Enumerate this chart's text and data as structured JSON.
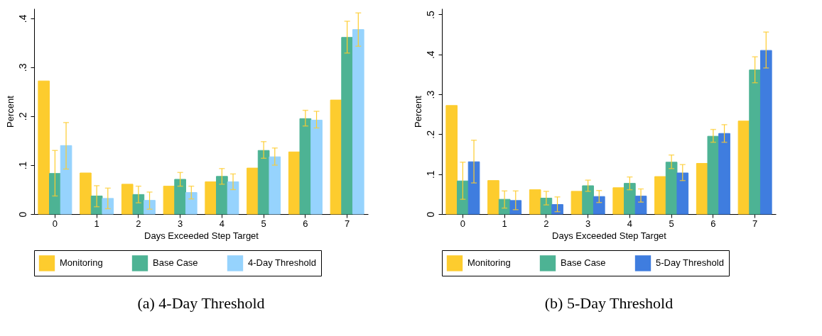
{
  "chart_data": [
    {
      "type": "bar",
      "title": "(a) 4-Day Threshold",
      "xlabel": "Days Exceeded Step Target",
      "ylabel": "Percent",
      "categories": [
        "0",
        "1",
        "2",
        "3",
        "4",
        "5",
        "6",
        "7"
      ],
      "ylim": [
        0,
        0.42
      ],
      "yticks": [
        0,
        {
          "value": 0.1,
          "label": ".1"
        },
        {
          "value": 0.2,
          "label": ".2"
        },
        {
          "value": 0.3,
          "label": ".3"
        },
        {
          "value": 0.4,
          "label": ".4"
        }
      ],
      "grid": false,
      "legend": "bottom",
      "series": [
        {
          "name": "Monitoring",
          "color": "#fdcc2e",
          "values": [
            0.272,
            0.084,
            0.061,
            0.057,
            0.066,
            0.094,
            0.127,
            0.233
          ]
        },
        {
          "name": "Base Case",
          "color": "#4db394",
          "values": [
            0.083,
            0.037,
            0.04,
            0.071,
            0.077,
            0.13,
            0.195,
            0.361
          ],
          "errors": [
            [
              0.037,
              0.13
            ],
            [
              0.015,
              0.058
            ],
            [
              0.023,
              0.057
            ],
            [
              0.057,
              0.085
            ],
            [
              0.061,
              0.093
            ],
            [
              0.114,
              0.148
            ],
            [
              0.18,
              0.212
            ],
            [
              0.329,
              0.394
            ]
          ]
        },
        {
          "name": "4-Day Threshold",
          "color": "#96d3fd",
          "values": [
            0.14,
            0.032,
            0.028,
            0.044,
            0.066,
            0.117,
            0.192,
            0.377
          ],
          "errors": [
            [
              0.092,
              0.187
            ],
            [
              0.011,
              0.053
            ],
            [
              0.01,
              0.045
            ],
            [
              0.031,
              0.057
            ],
            [
              0.05,
              0.082
            ],
            [
              0.1,
              0.135
            ],
            [
              0.176,
              0.21
            ],
            [
              0.343,
              0.411
            ]
          ]
        }
      ]
    },
    {
      "type": "bar",
      "title": "(b) 5-Day Threshold",
      "xlabel": "Days Exceeded Step Target",
      "ylabel": "Percent",
      "categories": [
        "0",
        "1",
        "2",
        "3",
        "4",
        "5",
        "6",
        "7"
      ],
      "ylim": [
        0,
        0.515
      ],
      "yticks": [
        0,
        {
          "value": 0.1,
          "label": ".1"
        },
        {
          "value": 0.2,
          "label": ".2"
        },
        {
          "value": 0.3,
          "label": ".3"
        },
        {
          "value": 0.4,
          "label": ".4"
        },
        {
          "value": 0.5,
          "label": ".5"
        }
      ],
      "grid": false,
      "legend": "bottom",
      "series": [
        {
          "name": "Monitoring",
          "color": "#fdcc2e",
          "values": [
            0.272,
            0.084,
            0.061,
            0.057,
            0.066,
            0.094,
            0.127,
            0.233
          ]
        },
        {
          "name": "Base Case",
          "color": "#4db394",
          "values": [
            0.083,
            0.037,
            0.04,
            0.071,
            0.077,
            0.13,
            0.195,
            0.361
          ],
          "errors": [
            [
              0.037,
              0.13
            ],
            [
              0.015,
              0.058
            ],
            [
              0.023,
              0.057
            ],
            [
              0.057,
              0.085
            ],
            [
              0.061,
              0.093
            ],
            [
              0.114,
              0.148
            ],
            [
              0.18,
              0.212
            ],
            [
              0.329,
              0.394
            ]
          ]
        },
        {
          "name": "5-Day Threshold",
          "color": "#3f7ddf",
          "values": [
            0.131,
            0.034,
            0.024,
            0.044,
            0.045,
            0.103,
            0.202,
            0.41
          ],
          "errors": [
            [
              0.078,
              0.185
            ],
            [
              0.011,
              0.058
            ],
            [
              0.006,
              0.043
            ],
            [
              0.029,
              0.059
            ],
            [
              0.03,
              0.063
            ],
            [
              0.084,
              0.124
            ],
            [
              0.18,
              0.224
            ],
            [
              0.366,
              0.456
            ]
          ]
        }
      ]
    }
  ]
}
